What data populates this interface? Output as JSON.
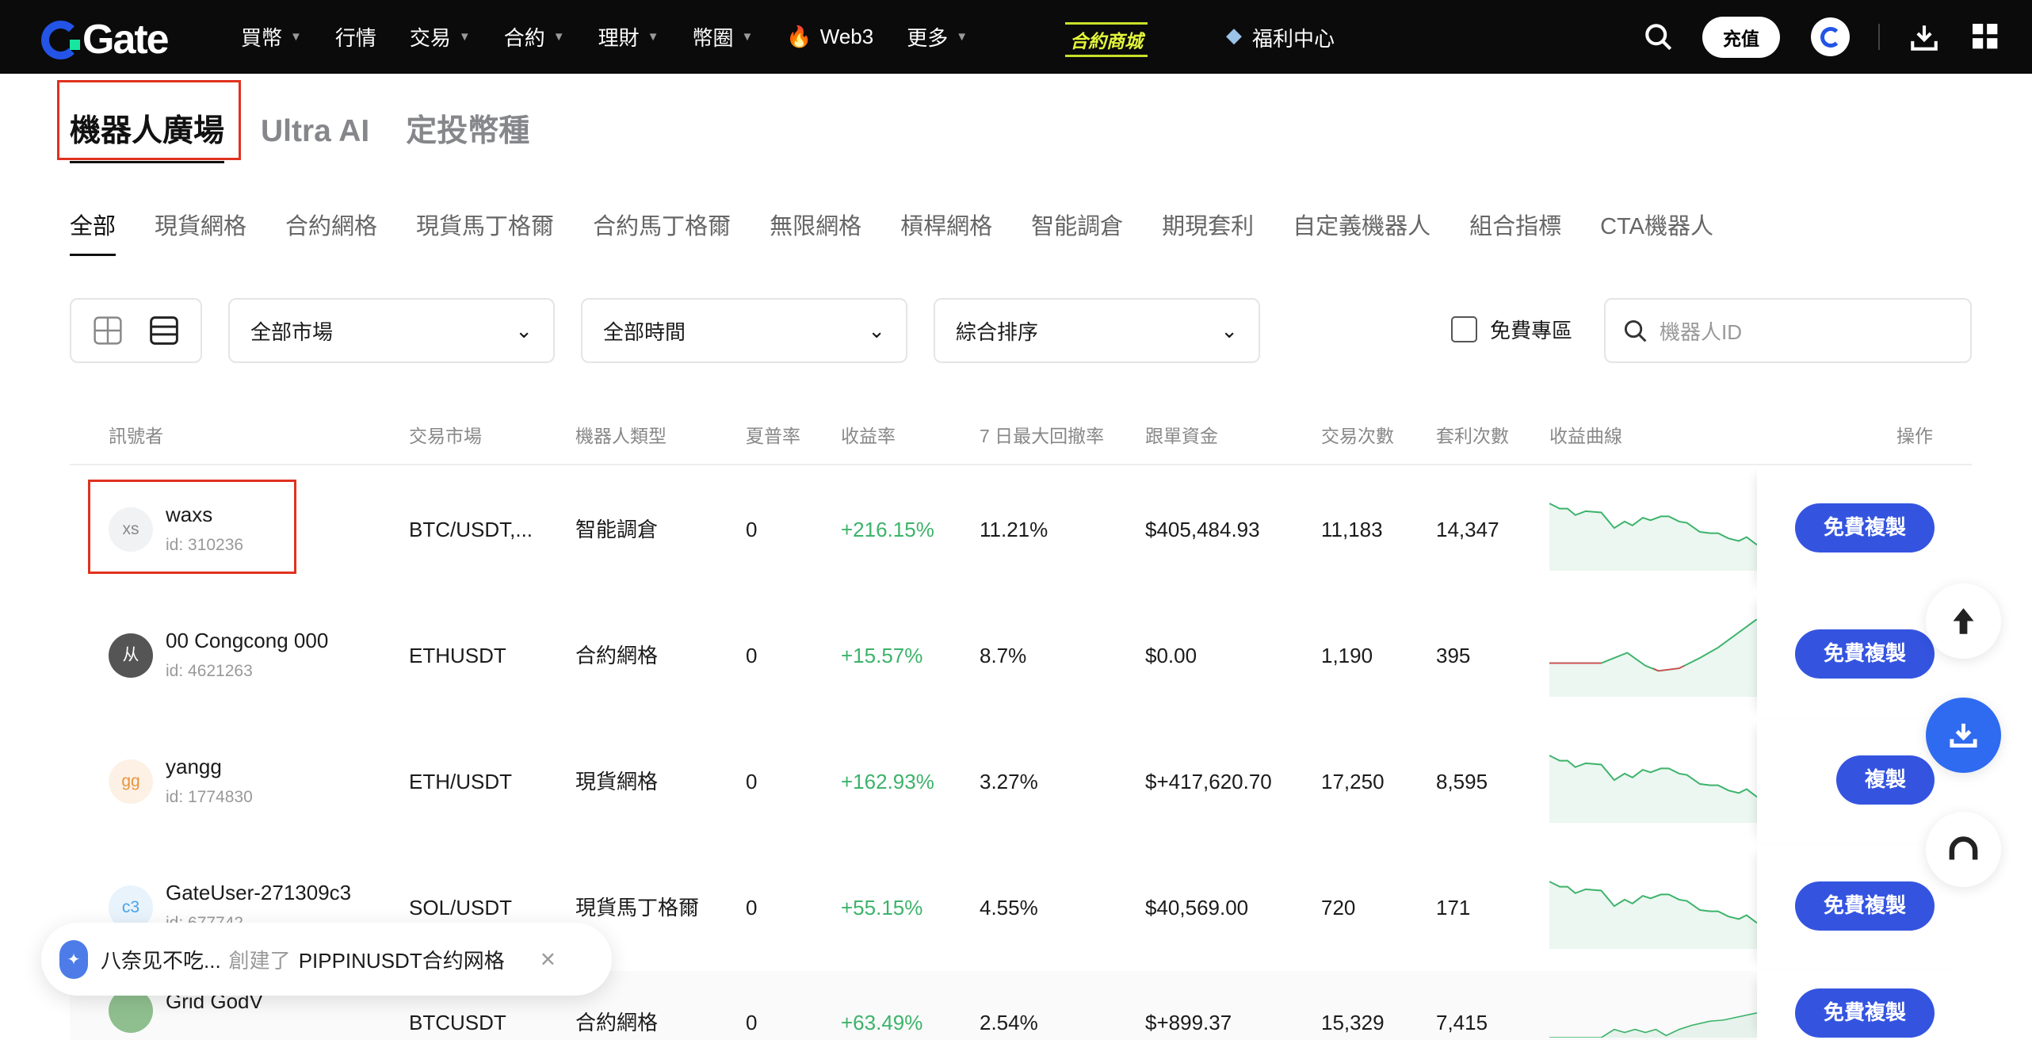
{
  "header": {
    "logo": "Gate",
    "nav": [
      {
        "label": "買幣",
        "caret": true
      },
      {
        "label": "行情",
        "caret": false
      },
      {
        "label": "交易",
        "caret": true
      },
      {
        "label": "合約",
        "caret": true
      },
      {
        "label": "理財",
        "caret": true
      },
      {
        "label": "幣圈",
        "caret": true
      },
      {
        "label": "Web3",
        "caret": false,
        "icon": "fire-icon"
      },
      {
        "label": "更多",
        "caret": true
      }
    ],
    "shop_badge": "合約商城",
    "welfare": "福利中心",
    "recharge": "充值"
  },
  "main_tabs": [
    {
      "label": "機器人廣場",
      "active": true
    },
    {
      "label": "Ultra AI"
    },
    {
      "label": "定投幣種"
    }
  ],
  "sub_tabs": [
    {
      "label": "全部",
      "active": true
    },
    {
      "label": "現貨網格"
    },
    {
      "label": "合約網格"
    },
    {
      "label": "現貨馬丁格爾"
    },
    {
      "label": "合約馬丁格爾"
    },
    {
      "label": "無限網格"
    },
    {
      "label": "槓桿網格"
    },
    {
      "label": "智能調倉"
    },
    {
      "label": "期現套利"
    },
    {
      "label": "自定義機器人"
    },
    {
      "label": "組合指標"
    },
    {
      "label": "CTA機器人"
    }
  ],
  "filters": {
    "market": "全部市場",
    "time": "全部時間",
    "sort": "綜合排序",
    "free_zone": "免費專區",
    "search_placeholder": "機器人ID"
  },
  "table": {
    "columns": [
      "訊號者",
      "交易市場",
      "機器人類型",
      "夏普率",
      "收益率",
      "7 日最大回撤率",
      "跟單資金",
      "交易次數",
      "套利次數",
      "收益曲線",
      "操作"
    ],
    "rows": [
      {
        "avatar": "xs",
        "avatar_color": "#888",
        "avatar_bg": "#f1f2f4",
        "name": "waxs",
        "id": "id: 310236",
        "market": "BTC/USDT,...",
        "type": "智能調倉",
        "sharpe": "0",
        "roi": "+216.15%",
        "mdd": "11.21%",
        "funds": "$405,484.93",
        "trades": "11,183",
        "arb": "14,347",
        "action": "免費複製",
        "trend": "down"
      },
      {
        "avatar": "从",
        "avatar_color": "#fff",
        "avatar_bg": "#555",
        "name": "00 Congcong 000",
        "id": "id: 4621263",
        "market": "ETHUSDT",
        "type": "合約網格",
        "sharpe": "0",
        "roi": "+15.57%",
        "mdd": "8.7%",
        "funds": "$0.00",
        "trades": "1,190",
        "arb": "395",
        "action": "免費複製",
        "trend": "mixed"
      },
      {
        "avatar": "gg",
        "avatar_color": "#e8953c",
        "avatar_bg": "#fdf1e6",
        "name": "yangg",
        "id": "id: 1774830",
        "market": "ETH/USDT",
        "type": "現貨網格",
        "sharpe": "0",
        "roi": "+162.93%",
        "mdd": "3.27%",
        "funds": "$+417,620.70",
        "trades": "17,250",
        "arb": "8,595",
        "action": "複製",
        "trend": "down"
      },
      {
        "avatar": "c3",
        "avatar_color": "#4aa3e8",
        "avatar_bg": "#e8f3fc",
        "name": "GateUser-271309c3",
        "id": "id: 677742",
        "market": "SOL/USDT",
        "type": "現貨馬丁格爾",
        "sharpe": "0",
        "roi": "+55.15%",
        "mdd": "4.55%",
        "funds": "$40,569.00",
        "trades": "720",
        "arb": "171",
        "action": "免費複製",
        "trend": "down"
      },
      {
        "avatar": "",
        "avatar_color": "#fff",
        "avatar_bg": "#8fbf8f",
        "name": "Grid GodV",
        "id": "",
        "market": "BTCUSDT",
        "type": "合約網格",
        "sharpe": "0",
        "roi": "+63.49%",
        "mdd": "2.54%",
        "funds": "$+899.37",
        "trades": "15,329",
        "arb": "7,415",
        "action": "免費複製",
        "trend": "up"
      }
    ]
  },
  "toast": {
    "user": "八奈见不吃...",
    "verb": "創建了",
    "text": "PIPPINUSDT合约网格",
    "close": "×"
  },
  "colors": {
    "accent": "#3454e0",
    "positive": "#3db36b",
    "negative": "#e0424f",
    "topbar": "#0b0b0b"
  }
}
